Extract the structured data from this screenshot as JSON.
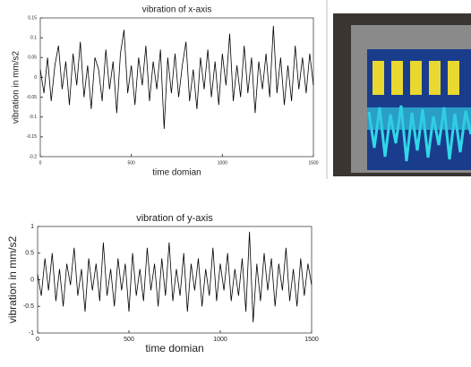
{
  "chart_data": [
    {
      "type": "line",
      "title": "vibration of x-axis",
      "x_label": "time domian",
      "y_label": "vibration in mm/s2",
      "xlim": [
        0,
        1500
      ],
      "xticks": [
        0,
        500,
        1000,
        1500
      ],
      "ylim": [
        -0.2,
        0.15
      ],
      "yticks": [
        -0.2,
        -0.15,
        -0.1,
        -0.05,
        0,
        0.05,
        0.1,
        0.15
      ],
      "x": [
        0,
        20,
        40,
        60,
        80,
        100,
        120,
        140,
        160,
        180,
        200,
        220,
        240,
        260,
        280,
        300,
        320,
        340,
        360,
        380,
        400,
        420,
        440,
        460,
        480,
        500,
        520,
        540,
        560,
        580,
        600,
        620,
        640,
        660,
        680,
        700,
        720,
        740,
        760,
        780,
        800,
        820,
        840,
        860,
        880,
        900,
        920,
        940,
        960,
        980,
        1000,
        1020,
        1040,
        1060,
        1080,
        1100,
        1120,
        1140,
        1160,
        1180,
        1200,
        1220,
        1240,
        1260,
        1280,
        1300,
        1320,
        1340,
        1360,
        1380,
        1400,
        1420,
        1440,
        1460,
        1480,
        1500
      ],
      "series": [
        {
          "color": "#000000",
          "values": [
            0.02,
            -0.04,
            0.05,
            -0.06,
            0.03,
            0.08,
            -0.03,
            0.04,
            -0.07,
            0.06,
            -0.02,
            0.09,
            -0.05,
            0.03,
            -0.08,
            0.05,
            0.02,
            -0.06,
            0.07,
            -0.03,
            0.04,
            -0.09,
            0.06,
            0.12,
            -0.04,
            0.03,
            -0.07,
            0.05,
            -0.02,
            0.08,
            -0.06,
            0.04,
            -0.03,
            0.07,
            -0.13,
            0.05,
            -0.04,
            0.06,
            -0.05,
            0.03,
            0.09,
            -0.06,
            0.02,
            -0.08,
            0.05,
            -0.03,
            0.07,
            -0.05,
            0.04,
            -0.07,
            0.06,
            -0.02,
            0.11,
            -0.06,
            0.03,
            -0.05,
            0.08,
            -0.04,
            0.05,
            -0.09,
            0.04,
            -0.03,
            0.06,
            -0.05,
            0.13,
            -0.04,
            0.05,
            -0.07,
            0.03,
            -0.06,
            0.08,
            -0.03,
            0.05,
            -0.04,
            0.06,
            -0.02
          ]
        }
      ]
    },
    {
      "type": "line",
      "title": "vibration of y-axis",
      "x_label": "time domian",
      "y_label": "vibration in mm/s2",
      "xlim": [
        0,
        1500
      ],
      "xticks": [
        0,
        500,
        1000,
        1500
      ],
      "ylim": [
        -1,
        1
      ],
      "yticks": [
        -1,
        -0.5,
        0,
        0.5,
        1
      ],
      "x": [
        0,
        20,
        40,
        60,
        80,
        100,
        120,
        140,
        160,
        180,
        200,
        220,
        240,
        260,
        280,
        300,
        320,
        340,
        360,
        380,
        400,
        420,
        440,
        460,
        480,
        500,
        520,
        540,
        560,
        580,
        600,
        620,
        640,
        660,
        680,
        700,
        720,
        740,
        760,
        780,
        800,
        820,
        840,
        860,
        880,
        900,
        920,
        940,
        960,
        980,
        1000,
        1020,
        1040,
        1060,
        1080,
        1100,
        1120,
        1140,
        1160,
        1180,
        1200,
        1220,
        1240,
        1260,
        1280,
        1300,
        1320,
        1340,
        1360,
        1380,
        1400,
        1420,
        1440,
        1460,
        1480,
        1500
      ],
      "series": [
        {
          "color": "#000000",
          "values": [
            0.1,
            -0.3,
            0.4,
            -0.2,
            0.5,
            -0.4,
            0.2,
            -0.5,
            0.3,
            -0.1,
            0.6,
            -0.3,
            0.2,
            -0.6,
            0.4,
            -0.2,
            0.3,
            -0.4,
            0.7,
            -0.3,
            0.2,
            -0.5,
            0.4,
            -0.2,
            0.3,
            -0.6,
            0.5,
            -0.3,
            0.2,
            -0.4,
            0.6,
            -0.2,
            0.3,
            -0.5,
            0.4,
            -0.3,
            0.7,
            -0.4,
            0.2,
            -0.3,
            0.5,
            -0.6,
            0.3,
            -0.2,
            0.4,
            -0.5,
            0.2,
            -0.3,
            0.6,
            -0.4,
            0.3,
            -0.2,
            0.5,
            -0.4,
            0.2,
            -0.3,
            0.4,
            -0.6,
            0.9,
            -0.8,
            0.3,
            -0.4,
            0.5,
            -0.2,
            0.4,
            -0.5,
            0.3,
            -0.2,
            0.6,
            -0.4,
            0.2,
            -0.5,
            0.4,
            -0.3,
            0.3,
            -0.1
          ]
        }
      ]
    }
  ]
}
